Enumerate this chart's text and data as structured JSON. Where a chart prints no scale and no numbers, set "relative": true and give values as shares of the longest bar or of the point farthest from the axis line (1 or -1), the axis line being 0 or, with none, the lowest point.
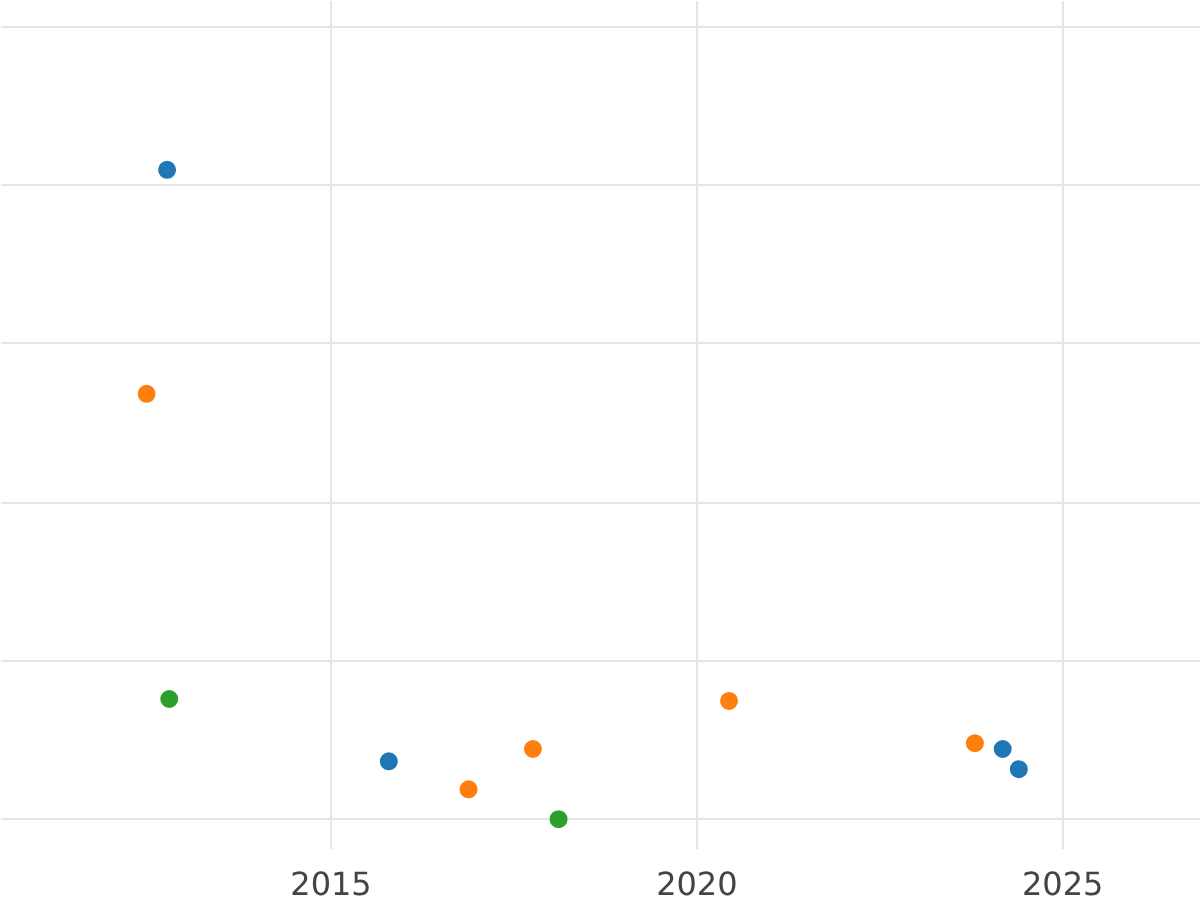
{
  "chart_data": {
    "type": "scatter",
    "relative": true,
    "xlim": [
      2010.49,
      2026.89
    ],
    "xticks": [
      2015,
      2020,
      2025
    ],
    "tick_labels": "x",
    "grid": true,
    "marker": "circle",
    "series": [
      {
        "color": "#1f77b4",
        "x": [
          2012.76,
          2015.79,
          2024.18,
          2024.4
        ],
        "values": [
          1.0,
          0.089,
          0.108,
          0.077
        ]
      },
      {
        "color": "#ff7f0e",
        "x": [
          2012.48,
          2016.88,
          2017.76,
          2020.44,
          2023.8
        ],
        "values": [
          0.655,
          0.046,
          0.108,
          0.182,
          0.117
        ]
      },
      {
        "color": "#2ca02c",
        "x": [
          2012.79,
          2018.11
        ],
        "values": [
          0.185,
          0.0
        ]
      }
    ]
  }
}
